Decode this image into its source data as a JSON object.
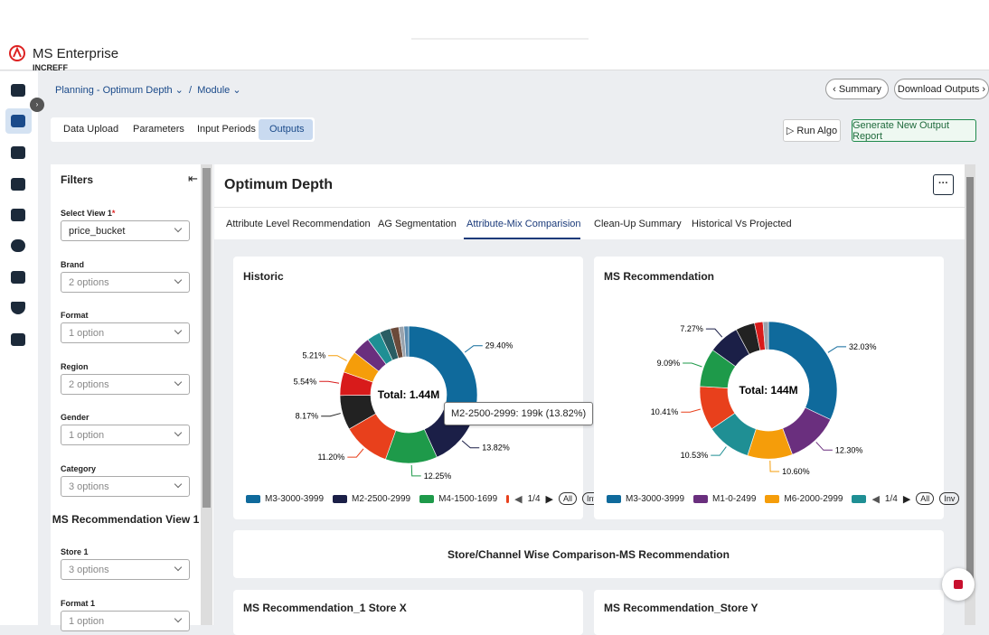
{
  "app": {
    "name": "MS Enterprise",
    "brand": "INCREFF"
  },
  "breadcrumb": [
    "Planning - Optimum Depth",
    "Module"
  ],
  "header_buttons": [
    "Summary",
    "Download Outputs"
  ],
  "tabs": [
    "Data Upload",
    "Parameters",
    "Input Periods",
    "Outputs"
  ],
  "actions": [
    "Run Algo",
    "Generate New Output Report"
  ],
  "filters": {
    "title": "Filters",
    "fields": [
      {
        "label": "Select View 1",
        "required": "*",
        "value": "price_bucket"
      },
      {
        "label": "Brand",
        "value": "2 options"
      },
      {
        "label": "Format",
        "value": "1 option"
      },
      {
        "label": "Region",
        "value": "2 options"
      },
      {
        "label": "Gender",
        "value": "1 option"
      },
      {
        "label": "Category",
        "value": "3 options"
      }
    ],
    "section": "MS Recommendation View 1",
    "section_fields": [
      {
        "label": "Store 1",
        "value": "3 options"
      },
      {
        "label": "Format 1",
        "value": "1 option"
      }
    ]
  },
  "page_title": "Optimum Depth",
  "subtabs": [
    "Attribute Level Recommendation",
    "AG Segmentation",
    "Attribute-Mix Comparision",
    "Clean-Up Summary",
    "Historical Vs Projected"
  ],
  "charts": [
    {
      "type": "donut",
      "title": "Historic",
      "center_label": "Total: 1.44M",
      "categories": [
        "M3-3000-3999",
        "M2-2500-2999",
        "M4-1500-1699",
        null,
        null,
        null,
        null,
        null,
        null,
        null,
        null,
        null,
        null
      ],
      "values": [
        29.4,
        13.82,
        12.25,
        11.2,
        8.17,
        5.54,
        5.21,
        4.3,
        3.2,
        2.6,
        2.0,
        1.2,
        1.11
      ],
      "value_labels": [
        "29.40%",
        "13.82%",
        "12.25%",
        "11.20%",
        "8.17%",
        "5.54%",
        "5.21%",
        null,
        null,
        null,
        null,
        null,
        null
      ],
      "colors": [
        "#0f6a9c",
        "#1b1f47",
        "#1e9a4a",
        "#e8401c",
        "#222222",
        "#d81b1b",
        "#f59d0a",
        "#6a2f7e",
        "#1f8f94",
        "#2a5d63",
        "#6b4a3a",
        "#9aa3ad",
        "#5a8bb0"
      ],
      "pager": "1/4",
      "buttons": [
        "All",
        "Inv"
      ],
      "tooltip": "M2-2500-2999: 199k (13.82%)"
    },
    {
      "type": "donut",
      "title": "MS Recommendation",
      "center_label": "Total: 144M",
      "categories": [
        "M3-3000-3999",
        "M1-0-2499",
        "M6-2000-2999",
        null,
        null,
        null,
        null,
        null,
        null,
        null
      ],
      "values": [
        32.03,
        12.3,
        10.6,
        10.53,
        10.41,
        9.09,
        7.27,
        4.5,
        2.0,
        1.27
      ],
      "value_labels": [
        "32.03%",
        "12.30%",
        "10.60%",
        "10.53%",
        "10.41%",
        "9.09%",
        "7.27%",
        null,
        null,
        null
      ],
      "colors": [
        "#0f6a9c",
        "#6a2f7e",
        "#f59d0a",
        "#1f8f94",
        "#e8401c",
        "#1e9a4a",
        "#1b1f47",
        "#222222",
        "#d81b1b",
        "#9aa3ad"
      ],
      "pager": "1/4",
      "buttons": [
        "All",
        "Inv"
      ]
    }
  ],
  "sections": [
    "Store/Channel Wise Comparison-MS Recommendation"
  ],
  "cards": [
    "MS Recommendation_1 Store X",
    "MS Recommendation_Store Y"
  ]
}
